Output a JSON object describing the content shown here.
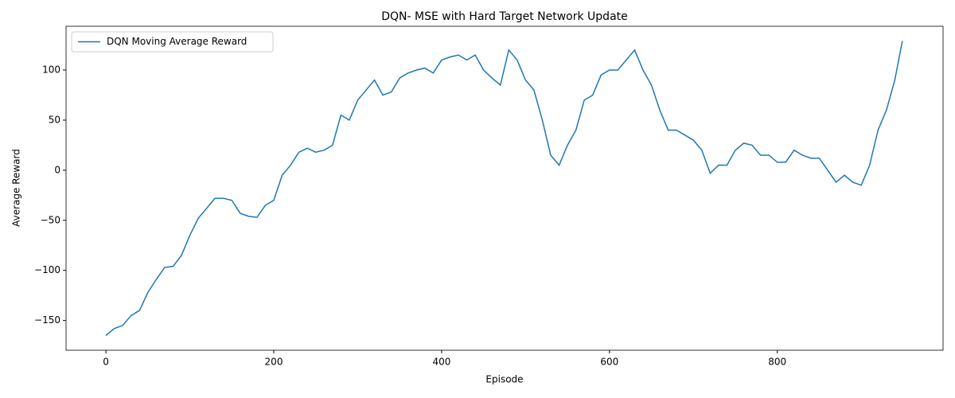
{
  "chart_data": {
    "type": "line",
    "title": "DQN- MSE with Hard Target Network Update",
    "x_label": "Episode",
    "y_label": "Average Reward",
    "x": [
      0,
      10,
      20,
      30,
      40,
      50,
      60,
      70,
      80,
      90,
      100,
      110,
      120,
      130,
      140,
      150,
      160,
      170,
      180,
      190,
      200,
      210,
      220,
      230,
      240,
      250,
      260,
      270,
      280,
      290,
      300,
      310,
      320,
      330,
      340,
      350,
      360,
      370,
      380,
      390,
      400,
      410,
      420,
      430,
      440,
      450,
      460,
      470,
      480,
      490,
      500,
      510,
      520,
      530,
      540,
      550,
      560,
      570,
      580,
      590,
      600,
      610,
      620,
      630,
      640,
      650,
      660,
      670,
      680,
      690,
      700,
      710,
      720,
      730,
      740,
      750,
      760,
      770,
      780,
      790,
      800,
      810,
      820,
      830,
      840,
      850,
      860,
      870,
      880,
      890,
      900,
      910,
      920,
      930,
      940,
      949
    ],
    "series": [
      {
        "name": "DQN Moving Average Reward",
        "color": "#1f77b4",
        "values": [
          -165,
          -158,
          -155,
          -145,
          -140,
          -122,
          -109,
          -97,
          -96,
          -85,
          -65,
          -48,
          -38,
          -28,
          -28,
          -30,
          -43,
          -46,
          -47,
          -35,
          -30,
          -5,
          5,
          18,
          22,
          18,
          20,
          25,
          55,
          50,
          70,
          80,
          90,
          75,
          78,
          92,
          97,
          100,
          102,
          97,
          110,
          113,
          115,
          110,
          115,
          100,
          92,
          85,
          120,
          110,
          90,
          80,
          50,
          15,
          5,
          25,
          40,
          70,
          75,
          95,
          100,
          100,
          110,
          120,
          100,
          85,
          60,
          40,
          40,
          35,
          30,
          20,
          -3,
          5,
          5,
          20,
          27,
          25,
          15,
          15,
          8,
          8,
          20,
          15,
          12,
          12,
          0,
          -12,
          -5,
          -12,
          -15,
          5,
          40,
          60,
          90,
          129
        ]
      }
    ],
    "xlim": [
      -47.5,
      997.5
    ],
    "ylim": [
      -179.7,
      143.7
    ],
    "xticks": [
      0,
      200,
      400,
      600,
      800
    ],
    "yticks": [
      {
        "value": -150,
        "label": "−150"
      },
      {
        "value": -100,
        "label": "−100"
      },
      {
        "value": -50,
        "label": "−50"
      },
      0,
      50,
      100
    ],
    "legend": "upper left"
  }
}
